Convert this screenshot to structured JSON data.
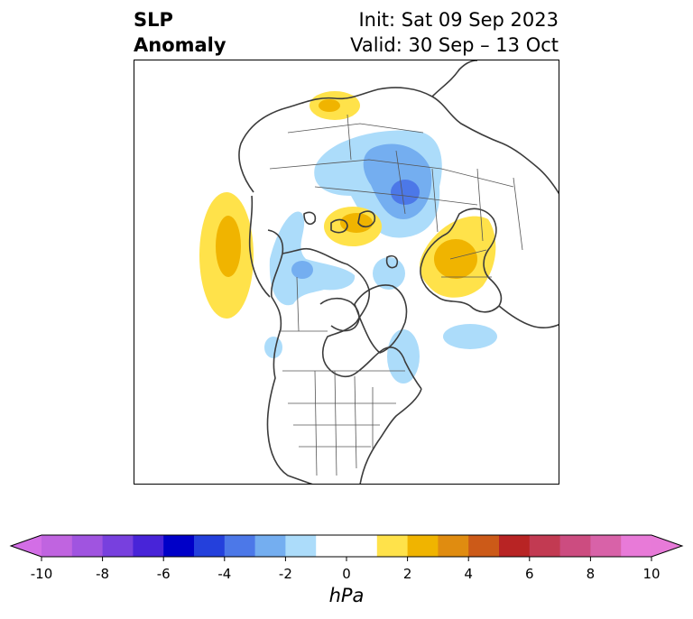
{
  "title": {
    "line1_left": "SLP",
    "line2_left": "Anomaly",
    "line1_right": "Init: Sat 09 Sep 2023",
    "line2_right": "Valid: 30 Sep – 13 Oct"
  },
  "map": {
    "projection": "polar-stereographic",
    "features": [
      "coastlines",
      "country-borders",
      "state-borders"
    ],
    "anomaly_centers": [
      {
        "region": "North Pacific / Gulf of Alaska",
        "sign": "positive",
        "peak_hPa": 3
      },
      {
        "region": "Eastern Siberia / Kamchatka",
        "sign": "positive",
        "peak_hPa": 2
      },
      {
        "region": "Arctic Ocean north of Greenland",
        "sign": "positive",
        "peak_hPa": 2
      },
      {
        "region": "Scandinavia / Western Russia",
        "sign": "positive",
        "peak_hPa": 3
      },
      {
        "region": "Central Siberia",
        "sign": "negative",
        "peak_hPa": -5
      },
      {
        "region": "Western Canada / Alaska",
        "sign": "negative",
        "peak_hPa": -3
      },
      {
        "region": "Canadian Arctic Archipelago",
        "sign": "negative",
        "peak_hPa": -2
      },
      {
        "region": "Labrador / Davis Strait",
        "sign": "negative",
        "peak_hPa": -2
      },
      {
        "region": "North Atlantic",
        "sign": "negative",
        "peak_hPa": -2
      }
    ]
  },
  "colorbar": {
    "unit": "hPa",
    "ticks": [
      "-10",
      "-8",
      "-6",
      "-4",
      "-2",
      "0",
      "2",
      "4",
      "6",
      "8",
      "10"
    ],
    "tick_values": [
      -10,
      -8,
      -6,
      -4,
      -2,
      0,
      2,
      4,
      6,
      8,
      10
    ],
    "extend": "both",
    "lower_extend_color": "#d36ee6",
    "upper_extend_color": "#e77ad8",
    "levels": [
      {
        "from": -10,
        "to": -9,
        "color": "#c064e0"
      },
      {
        "from": -9,
        "to": -8,
        "color": "#a054e0"
      },
      {
        "from": -8,
        "to": -7,
        "color": "#7840de"
      },
      {
        "from": -7,
        "to": -6,
        "color": "#4824d8"
      },
      {
        "from": -6,
        "to": -5,
        "color": "#0000c8"
      },
      {
        "from": -5,
        "to": -4,
        "color": "#2440dc"
      },
      {
        "from": -4,
        "to": -3,
        "color": "#4c78e8"
      },
      {
        "from": -3,
        "to": -2,
        "color": "#74aef0"
      },
      {
        "from": -2,
        "to": -1,
        "color": "#acdcfa"
      },
      {
        "from": -1,
        "to": 1,
        "color": "#ffffff"
      },
      {
        "from": 1,
        "to": 2,
        "color": "#ffe24a"
      },
      {
        "from": 2,
        "to": 3,
        "color": "#f0b400"
      },
      {
        "from": 3,
        "to": 4,
        "color": "#e08c10"
      },
      {
        "from": 4,
        "to": 5,
        "color": "#cc5a18"
      },
      {
        "from": 5,
        "to": 6,
        "color": "#b82424"
      },
      {
        "from": 6,
        "to": 7,
        "color": "#c23a52"
      },
      {
        "from": 7,
        "to": 8,
        "color": "#cc4c80"
      },
      {
        "from": 8,
        "to": 9,
        "color": "#d862a8"
      },
      {
        "from": 9,
        "to": 10,
        "color": "#e87ad8"
      }
    ]
  }
}
